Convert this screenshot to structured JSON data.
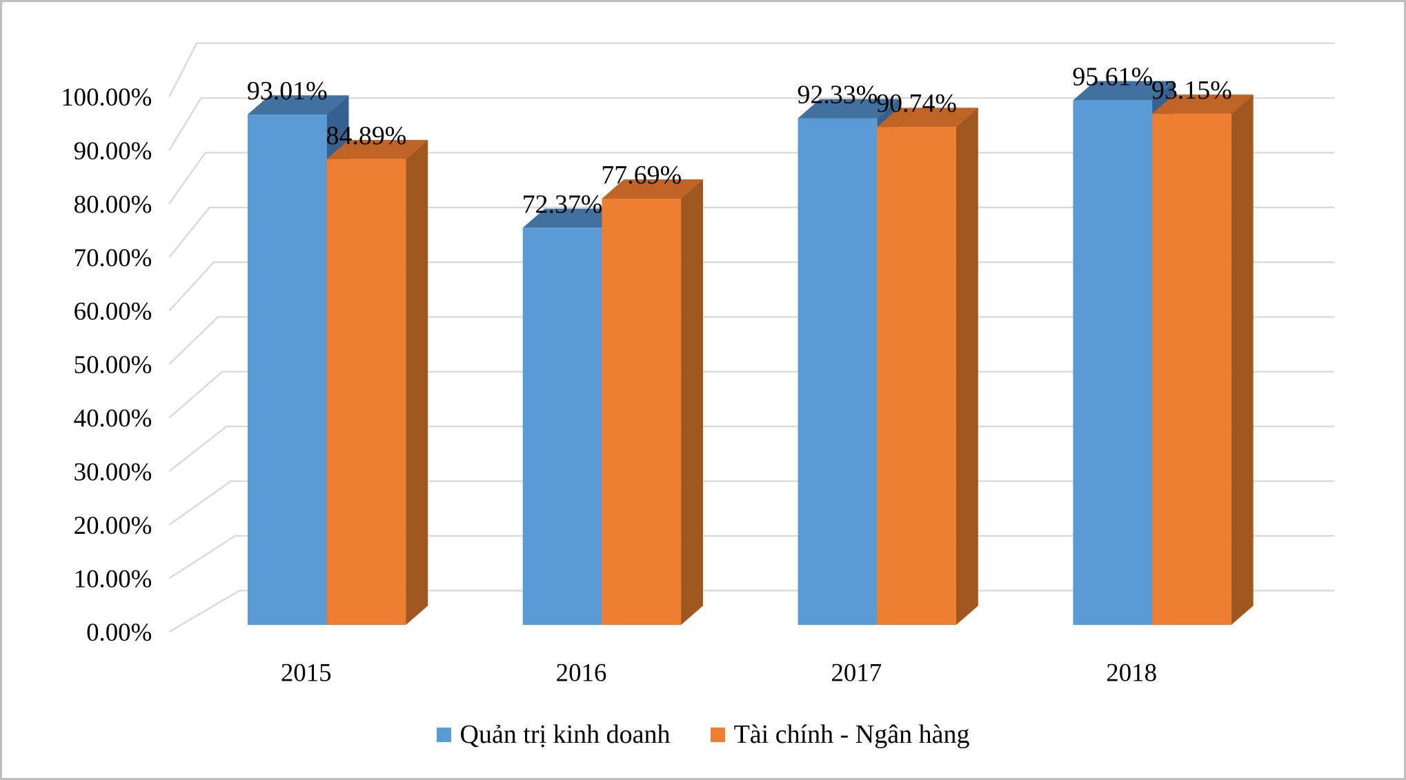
{
  "chart_data": {
    "type": "bar",
    "variant": "3d-clustered-column",
    "title": "",
    "xlabel": "",
    "ylabel": "",
    "categories": [
      "2015",
      "2016",
      "2017",
      "2018"
    ],
    "series": [
      {
        "name": "Quản trị kinh doanh",
        "values": [
          93.01,
          72.37,
          92.33,
          95.61
        ],
        "labels": [
          "93.01%",
          "72.37%",
          "92.33%",
          "95.61%"
        ],
        "colors": {
          "front": "#5B9BD5",
          "top": "#40719F",
          "side": "#366090"
        }
      },
      {
        "name": "Tài chính - Ngân hàng",
        "values": [
          84.89,
          77.69,
          90.74,
          93.15
        ],
        "labels": [
          "84.89%",
          "77.69%",
          "90.74%",
          "93.15%"
        ],
        "colors": {
          "front": "#ED7D31",
          "top": "#C06426",
          "side": "#A0561F"
        }
      }
    ],
    "ylim": [
      0,
      100
    ],
    "y_tick_step": 10,
    "y_ticks": [
      "0.00%",
      "10.00%",
      "20.00%",
      "30.00%",
      "40.00%",
      "50.00%",
      "60.00%",
      "70.00%",
      "80.00%",
      "90.00%",
      "100.00%"
    ],
    "grid": true,
    "gridline_color": "#D9D9D9",
    "axis_text_color": "#000000",
    "data_label_color": "#000000",
    "legend_position": "bottom",
    "frame_border_color": "#BFBFBF",
    "background_color": "#FFFFFF"
  }
}
